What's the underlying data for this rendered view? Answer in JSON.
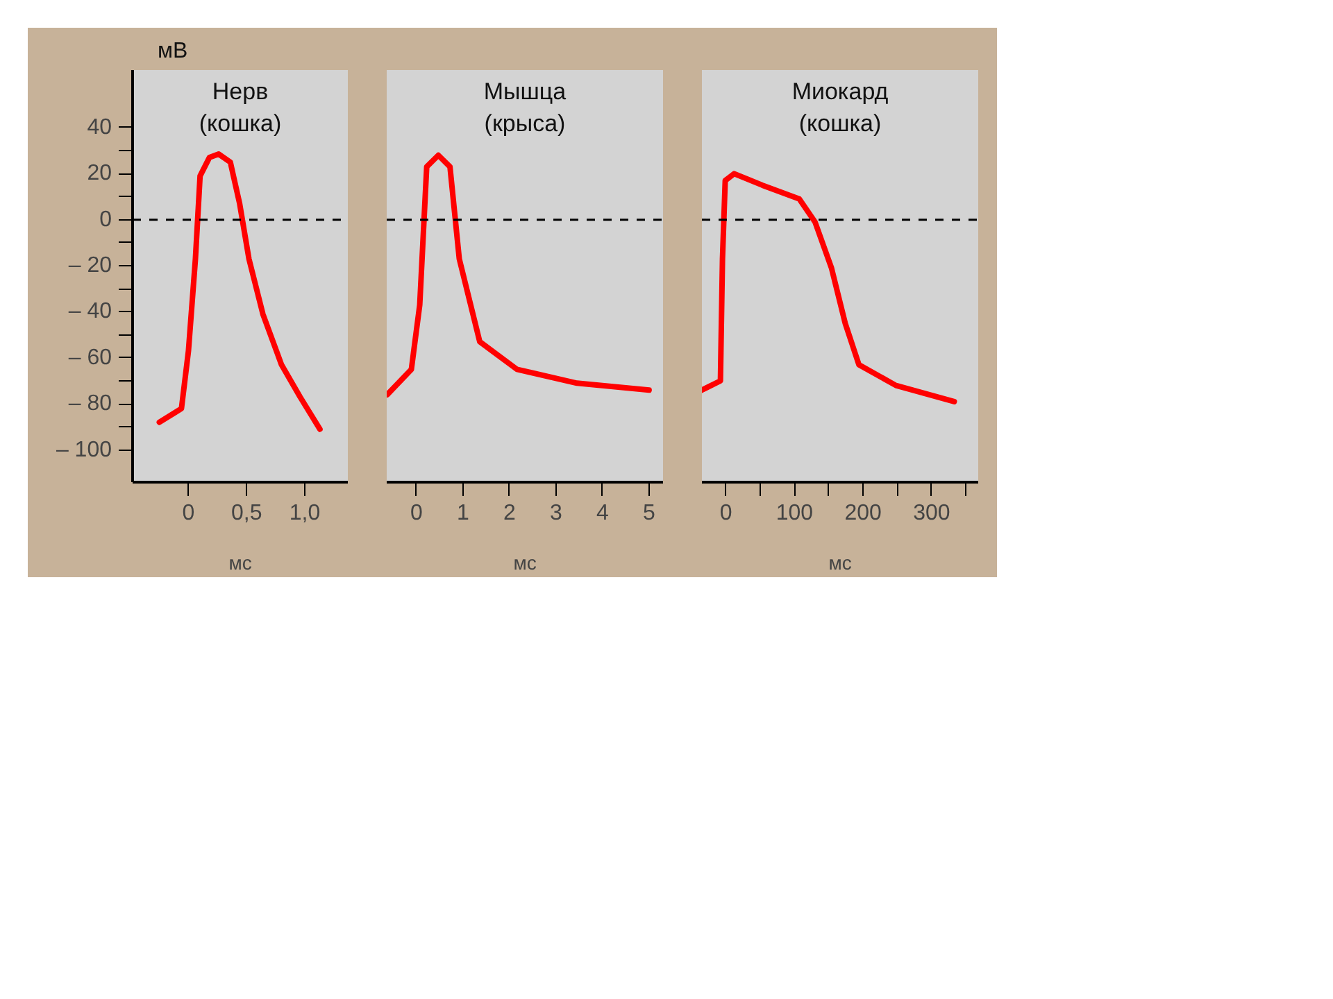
{
  "chart_data": [
    {
      "type": "line",
      "title": "Нерв\n(кошка)",
      "xlabel": "мс",
      "ylabel": "мВ",
      "xlim": [
        -0.48,
        1.37
      ],
      "ylim": [
        -114,
        65
      ],
      "xticks": [
        0,
        {
          "value": 0.5,
          "label": "0,5"
        },
        {
          "value": 1.0,
          "label": "1,0"
        }
      ],
      "yticks": [
        40,
        {
          "value": 30,
          "label": null
        },
        20,
        {
          "value": 10,
          "label": null
        },
        0,
        {
          "value": -10,
          "label": null
        },
        {
          "value": -20,
          "label": "– 20"
        },
        {
          "value": -30,
          "label": null
        },
        {
          "value": -40,
          "label": "– 40"
        },
        {
          "value": -50,
          "label": null
        },
        {
          "value": -60,
          "label": "– 60"
        },
        {
          "value": -70,
          "label": null
        },
        {
          "value": -80,
          "label": "– 80"
        },
        {
          "value": -90,
          "label": null
        },
        {
          "value": -100,
          "label": "– 100"
        }
      ],
      "ref_lines": [
        {
          "axis": "y",
          "value": 0,
          "color": "#000000",
          "line_style": "dashed"
        }
      ],
      "series": [
        {
          "color": "#ff0000",
          "x": [
            -0.25,
            -0.06,
            0.0,
            0.06,
            0.1,
            0.18,
            0.26,
            0.36,
            0.44,
            0.52,
            0.64,
            0.8,
            0.96,
            1.13
          ],
          "values": [
            -88,
            -82,
            -57,
            -17,
            19,
            27,
            28.5,
            25,
            7,
            -17,
            -41,
            -63,
            -77,
            -91
          ]
        }
      ]
    },
    {
      "type": "line",
      "title": "Мышца\n(крыса)",
      "xlabel": "мс",
      "xlim": [
        -0.64,
        5.3
      ],
      "ylim": [
        -114,
        65
      ],
      "tick_labels": "x",
      "xticks": [
        0,
        1,
        2,
        3,
        4,
        5
      ],
      "ref_lines": [
        {
          "axis": "y",
          "value": 0,
          "color": "#000000",
          "line_style": "dashed"
        }
      ],
      "series": [
        {
          "color": "#ff0000",
          "x": [
            -0.63,
            -0.11,
            0.07,
            0.22,
            0.47,
            0.72,
            0.92,
            1.36,
            2.16,
            3.45,
            5.0
          ],
          "values": [
            -76,
            -65,
            -37,
            23,
            28,
            23,
            -17,
            -53,
            -65,
            -71,
            -74
          ]
        }
      ]
    },
    {
      "type": "line",
      "title": "Миокард\n(кошка)",
      "xlabel": "мс",
      "xlim": [
        -35,
        368
      ],
      "ylim": [
        -114,
        65
      ],
      "tick_labels": "x",
      "xticks": [
        0,
        {
          "value": 50,
          "label": null
        },
        100,
        {
          "value": 150,
          "label": null
        },
        200,
        {
          "value": 250,
          "label": null
        },
        300,
        {
          "value": 350,
          "label": null
        }
      ],
      "ref_lines": [
        {
          "axis": "y",
          "value": 0,
          "color": "#000000",
          "line_style": "dashed"
        }
      ],
      "series": [
        {
          "color": "#ff0000",
          "x": [
            -35,
            -8,
            -5,
            -1,
            12,
            53,
            107,
            130,
            154,
            174,
            194,
            248,
            333
          ],
          "values": [
            -74,
            -70,
            -17,
            17,
            20,
            15,
            9,
            -1,
            -21,
            -45,
            -63,
            -72,
            -79
          ]
        }
      ]
    }
  ]
}
